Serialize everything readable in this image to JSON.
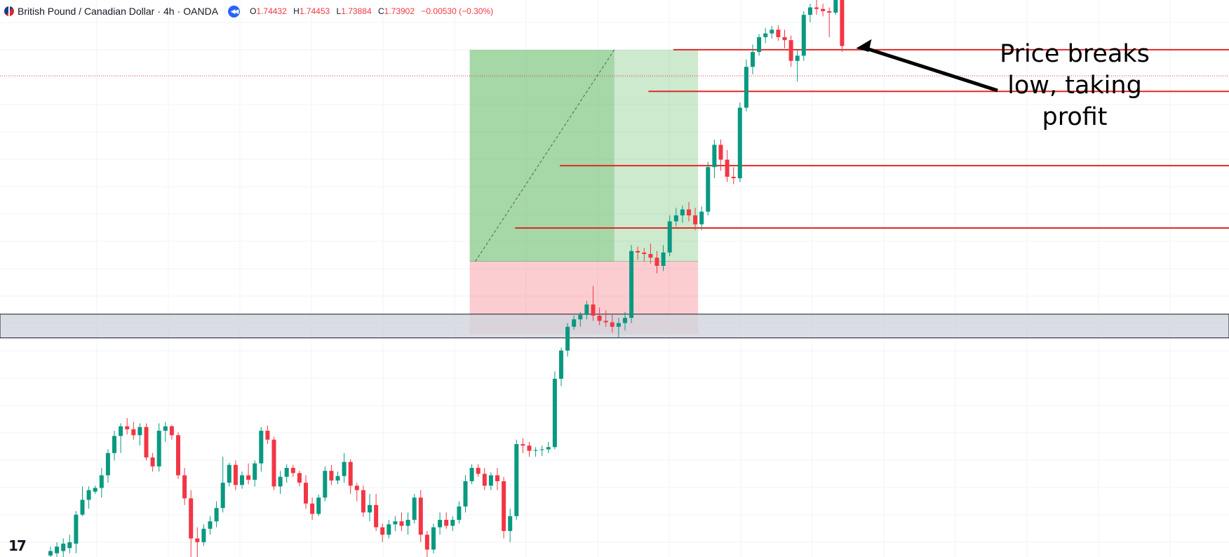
{
  "header": {
    "symbol": "British Pound / Canadian Dollar",
    "separator1": "·",
    "interval": "4h",
    "separator2": "·",
    "broker": "OANDA",
    "open_label": "O",
    "open": "1.74432",
    "high_label": "H",
    "high": "1.74453",
    "low_label": "L",
    "low": "1.73884",
    "close_label": "C",
    "close": "1.73902",
    "change": "−0.00530 (−0.30%)"
  },
  "annotation": {
    "lines": [
      "Price breaks",
      "low, taking",
      "profit"
    ]
  },
  "icons": {
    "flag": "gbp-cad-flag-icon",
    "replay": "replay-icon",
    "logo": "tradingview-logo-icon"
  },
  "colors": {
    "up": "#089981",
    "down": "#f23645",
    "profit_zone": "#4caf50",
    "loss_zone": "#f23645",
    "level": "#e02828",
    "support_zone": "#d1d4dc"
  },
  "chart_data": {
    "type": "candlestick",
    "yrange": [
      1.69,
      1.765
    ],
    "candles": [
      [
        1.6902,
        1.6914,
        1.6894,
        1.6908
      ],
      [
        1.6905,
        1.692,
        1.69,
        1.6914
      ],
      [
        1.6908,
        1.6925,
        1.69,
        1.6918
      ],
      [
        1.6912,
        1.693,
        1.6905,
        1.692
      ],
      [
        1.6918,
        1.6962,
        1.6905,
        1.6957
      ],
      [
        1.6957,
        1.6995,
        1.6955,
        1.6977
      ],
      [
        1.6977,
        1.6995,
        1.6965,
        1.699
      ],
      [
        1.6988,
        1.6996,
        1.6985,
        1.6993
      ],
      [
        1.6993,
        1.702,
        1.698,
        1.701
      ],
      [
        1.701,
        1.7045,
        1.7,
        1.704
      ],
      [
        1.704,
        1.707,
        1.703,
        1.7063
      ],
      [
        1.7063,
        1.708,
        1.704,
        1.7076
      ],
      [
        1.7076,
        1.7087,
        1.7065,
        1.7072
      ],
      [
        1.7072,
        1.7082,
        1.7058,
        1.7064
      ],
      [
        1.7064,
        1.708,
        1.705,
        1.7075
      ],
      [
        1.7075,
        1.708,
        1.703,
        1.7034
      ],
      [
        1.7034,
        1.704,
        1.7015,
        1.7022
      ],
      [
        1.7022,
        1.708,
        1.7015,
        1.707
      ],
      [
        1.707,
        1.7082,
        1.7055,
        1.7076
      ],
      [
        1.7076,
        1.7078,
        1.7058,
        1.7064
      ],
      [
        1.7064,
        1.7068,
        1.7005,
        1.701
      ],
      [
        1.701,
        1.702,
        1.697,
        1.6979
      ],
      [
        1.6979,
        1.699,
        1.69,
        1.6925
      ],
      [
        1.6925,
        1.694,
        1.689,
        1.692
      ],
      [
        1.692,
        1.6944,
        1.6915,
        1.6938
      ],
      [
        1.6938,
        1.6955,
        1.693,
        1.6948
      ],
      [
        1.6948,
        1.6975,
        1.694,
        1.6966
      ],
      [
        1.6966,
        1.7035,
        1.696,
        1.7
      ],
      [
        1.7,
        1.7027,
        1.6995,
        1.7024
      ],
      [
        1.7024,
        1.703,
        1.699,
        1.6997
      ],
      [
        1.6997,
        1.7015,
        1.6992,
        1.701
      ],
      [
        1.701,
        1.7026,
        1.6998,
        1.7004
      ],
      [
        1.7004,
        1.703,
        1.6995,
        1.7026
      ],
      [
        1.7026,
        1.7075,
        1.7015,
        1.707
      ],
      [
        1.707,
        1.7077,
        1.7052,
        1.7058
      ],
      [
        1.7058,
        1.7062,
        1.699,
        1.6995
      ],
      [
        1.6995,
        1.7016,
        1.6985,
        1.7008
      ],
      [
        1.7008,
        1.7025,
        1.7,
        1.702
      ],
      [
        1.702,
        1.7024,
        1.7008,
        1.7013
      ],
      [
        1.7013,
        1.7016,
        1.6995,
        1.7
      ],
      [
        1.7,
        1.701,
        1.6965,
        1.6972
      ],
      [
        1.6972,
        1.698,
        1.695,
        1.6958
      ],
      [
        1.6958,
        1.6984,
        1.6955,
        1.698
      ],
      [
        1.698,
        1.7022,
        1.6975,
        1.7016
      ],
      [
        1.7016,
        1.7024,
        1.6997,
        1.7003
      ],
      [
        1.7003,
        1.7015,
        1.6998,
        1.7009
      ],
      [
        1.7009,
        1.704,
        1.7,
        1.7028
      ],
      [
        1.7028,
        1.7032,
        1.6985,
        1.6996
      ],
      [
        1.6996,
        1.7,
        1.6975,
        1.699
      ],
      [
        1.699,
        1.6996,
        1.6954,
        1.696
      ],
      [
        1.696,
        1.6985,
        1.6948,
        1.697
      ],
      [
        1.697,
        1.6985,
        1.6935,
        1.694
      ],
      [
        1.694,
        1.6945,
        1.692,
        1.693
      ],
      [
        1.693,
        1.695,
        1.6925,
        1.6944
      ],
      [
        1.6944,
        1.6955,
        1.6935,
        1.6948
      ],
      [
        1.6948,
        1.696,
        1.6935,
        1.6942
      ],
      [
        1.6942,
        1.696,
        1.693,
        1.695
      ],
      [
        1.695,
        1.6985,
        1.6945,
        1.698
      ],
      [
        1.698,
        1.699,
        1.692,
        1.693
      ],
      [
        1.693,
        1.6935,
        1.69,
        1.691
      ],
      [
        1.691,
        1.6945,
        1.6905,
        1.694
      ],
      [
        1.694,
        1.696,
        1.693,
        1.695
      ],
      [
        1.695,
        1.696,
        1.6938,
        1.6942
      ],
      [
        1.6942,
        1.6955,
        1.6935,
        1.695
      ],
      [
        1.695,
        1.6975,
        1.6945,
        1.6968
      ],
      [
        1.6968,
        1.701,
        1.696,
        1.7002
      ],
      [
        1.7002,
        1.7025,
        1.6998,
        1.702
      ],
      [
        1.702,
        1.7025,
        1.7008,
        1.7012
      ],
      [
        1.7012,
        1.702,
        1.699,
        1.6996
      ],
      [
        1.6996,
        1.7014,
        1.699,
        1.701
      ],
      [
        1.701,
        1.702,
        1.699,
        1.7002
      ],
      [
        1.7002,
        1.7008,
        1.6925,
        1.6935
      ],
      [
        1.6935,
        1.6965,
        1.692,
        1.6955
      ],
      [
        1.6955,
        1.7058,
        1.695,
        1.7052
      ],
      [
        1.7052,
        1.706,
        1.704,
        1.705
      ],
      [
        1.705,
        1.7055,
        1.7035,
        1.7043
      ],
      [
        1.7043,
        1.7048,
        1.7035,
        1.7044
      ],
      [
        1.7044,
        1.705,
        1.7036,
        1.7045
      ],
      [
        1.7045,
        1.7055,
        1.704,
        1.7048
      ],
      [
        1.7048,
        1.715,
        1.7045,
        1.714
      ],
      [
        1.714,
        1.7182,
        1.713,
        1.7178
      ],
      [
        1.7178,
        1.7215,
        1.717,
        1.721
      ],
      [
        1.721,
        1.7225,
        1.7206,
        1.722
      ],
      [
        1.722,
        1.723,
        1.721,
        1.7226
      ],
      [
        1.7226,
        1.7245,
        1.722,
        1.724
      ],
      [
        1.724,
        1.7265,
        1.7218,
        1.7225
      ],
      [
        1.7225,
        1.7236,
        1.7212,
        1.7218
      ],
      [
        1.7218,
        1.7232,
        1.721,
        1.7216
      ],
      [
        1.7216,
        1.7226,
        1.7202,
        1.721
      ],
      [
        1.721,
        1.7222,
        1.7195,
        1.7215
      ],
      [
        1.7215,
        1.723,
        1.7205,
        1.7222
      ],
      [
        1.7222,
        1.732,
        1.7215,
        1.7312
      ],
      [
        1.7312,
        1.7318,
        1.73,
        1.731
      ],
      [
        1.731,
        1.7316,
        1.7298,
        1.7308
      ],
      [
        1.7308,
        1.7322,
        1.7295,
        1.7303
      ],
      [
        1.7303,
        1.7312,
        1.7282,
        1.7292
      ],
      [
        1.7292,
        1.732,
        1.7285,
        1.731
      ],
      [
        1.731,
        1.736,
        1.7305,
        1.7352
      ],
      [
        1.7352,
        1.737,
        1.7345,
        1.736
      ],
      [
        1.736,
        1.7373,
        1.735,
        1.7368
      ],
      [
        1.7368,
        1.7378,
        1.7352,
        1.736
      ],
      [
        1.736,
        1.737,
        1.734,
        1.7348
      ],
      [
        1.7348,
        1.7372,
        1.734,
        1.7365
      ],
      [
        1.7365,
        1.7432,
        1.736,
        1.7425
      ],
      [
        1.7425,
        1.7462,
        1.741,
        1.7455
      ],
      [
        1.7455,
        1.7462,
        1.742,
        1.7435
      ],
      [
        1.7435,
        1.7448,
        1.7405,
        1.7412
      ],
      [
        1.7412,
        1.7425,
        1.7402,
        1.741
      ],
      [
        1.741,
        1.7512,
        1.7405,
        1.7505
      ],
      [
        1.7505,
        1.757,
        1.75,
        1.756
      ],
      [
        1.756,
        1.759,
        1.755,
        1.758
      ],
      [
        1.758,
        1.7604,
        1.7575,
        1.76
      ],
      [
        1.76,
        1.7612,
        1.7592,
        1.7605
      ],
      [
        1.7605,
        1.7615,
        1.7598,
        1.761
      ],
      [
        1.761,
        1.7616,
        1.7595,
        1.76
      ],
      [
        1.76,
        1.761,
        1.7585,
        1.7596
      ],
      [
        1.7596,
        1.7602,
        1.756,
        1.7568
      ],
      [
        1.7568,
        1.7584,
        1.754,
        1.7575
      ],
      [
        1.7575,
        1.7635,
        1.7568,
        1.763
      ],
      [
        1.763,
        1.7645,
        1.762,
        1.764
      ],
      [
        1.764,
        1.765,
        1.763,
        1.7638
      ],
      [
        1.7638,
        1.7645,
        1.7628,
        1.7635
      ],
      [
        1.7635,
        1.764,
        1.76,
        1.7633
      ],
      [
        1.7633,
        1.7665,
        1.763,
        1.7654
      ],
      [
        1.7654,
        1.7657,
        1.758,
        1.7588
      ]
    ],
    "position": {
      "entry": 1.7298,
      "target": 1.7583,
      "stop": 1.72,
      "target_dashed_line": true
    },
    "support_zone": [
      1.7195,
      1.7227
    ],
    "current_price": 1.7548,
    "horizontal_levels": [
      1.7583,
      1.7527,
      1.7427,
      1.7343
    ],
    "annotation_arrow": true
  }
}
